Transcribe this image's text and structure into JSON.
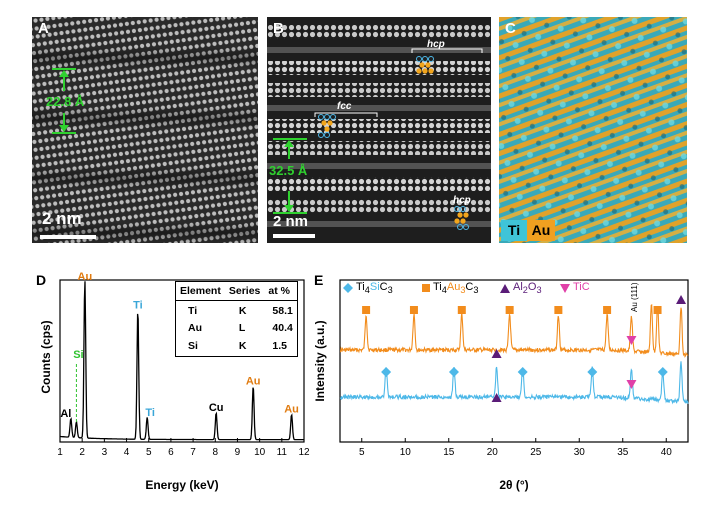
{
  "panel_A": {
    "label": "A",
    "measure": "22.8 Å",
    "scalebar": "2 nm"
  },
  "panel_B": {
    "label": "B",
    "measure": "32.5 Å",
    "scalebar": "2 nm",
    "stacking": [
      "hcp",
      "fcc",
      "hcp"
    ]
  },
  "panel_C": {
    "label": "C",
    "map_legend": [
      {
        "element": "Ti",
        "color": "#3fc4d8"
      },
      {
        "element": "Au",
        "color": "#f0a020"
      }
    ]
  },
  "panel_D": {
    "label": "D",
    "table": {
      "headers": [
        "Element",
        "Series",
        "at %"
      ],
      "rows": [
        [
          "Ti",
          "K",
          "58.1"
        ],
        [
          "Au",
          "L",
          "40.4"
        ],
        [
          "Si",
          "K",
          "1.5"
        ]
      ]
    },
    "peak_labels": [
      "Au",
      "Ti",
      "Ti",
      "Si",
      "Al",
      "Cu",
      "Au",
      "Au"
    ]
  },
  "panel_E": {
    "label": "E",
    "legend": [
      {
        "name": "Ti4SiC3",
        "marker": "diamond",
        "color": "#4db8e8"
      },
      {
        "name": "Ti4Au3C3",
        "marker": "square",
        "color": "#f28c1c"
      },
      {
        "name": "Al2O3",
        "marker": "triangle-up",
        "color": "#5a1c78"
      },
      {
        "name": "TiC",
        "marker": "triangle-down",
        "color": "#e040a8"
      }
    ],
    "annotation": "Au (111)"
  },
  "chart_data": [
    {
      "type": "line",
      "panel": "D",
      "xlabel": "Energy (keV)",
      "ylabel": "Counts (cps)",
      "xlim": [
        1,
        12
      ],
      "xticks": [
        1,
        2,
        3,
        4,
        5,
        6,
        7,
        8,
        9,
        10,
        11,
        12
      ],
      "peaks": [
        {
          "label": "Al",
          "x": 1.49,
          "y": 0.12,
          "color": "#000000"
        },
        {
          "label": "Si",
          "x": 1.74,
          "y": 0.1,
          "color": "#2fc22f"
        },
        {
          "label": "Au",
          "x": 2.12,
          "y": 1.0,
          "color": "#e07b10"
        },
        {
          "label": "Ti",
          "x": 4.51,
          "y": 0.82,
          "color": "#3aa6d8"
        },
        {
          "label": "Ti",
          "x": 4.93,
          "y": 0.14,
          "color": "#3aa6d8"
        },
        {
          "label": "Cu",
          "x": 8.04,
          "y": 0.17,
          "color": "#000000"
        },
        {
          "label": "Au",
          "x": 9.71,
          "y": 0.34,
          "color": "#e07b10"
        },
        {
          "label": "Au",
          "x": 11.44,
          "y": 0.16,
          "color": "#e07b10"
        }
      ]
    },
    {
      "type": "line",
      "panel": "E",
      "xlabel": "2θ (°)",
      "ylabel": "Intensity (a.u.)",
      "xlim": [
        2.5,
        42.5
      ],
      "xticks": [
        5,
        10,
        15,
        20,
        25,
        30,
        35,
        40
      ],
      "series": [
        {
          "name": "Ti4Au3C3",
          "color": "#f28c1c",
          "peaks": [
            5.5,
            11.0,
            16.5,
            22.0,
            27.6,
            33.2,
            36.0,
            38.3,
            39.0,
            41.7
          ]
        },
        {
          "name": "Ti4SiC3",
          "color": "#4db8e8",
          "peaks": [
            7.8,
            15.6,
            20.5,
            23.5,
            31.5,
            36.0,
            39.6,
            41.7
          ]
        }
      ],
      "markers": [
        {
          "phase": "Ti4Au3C3",
          "x": [
            5.5,
            11.0,
            16.5,
            22.0,
            27.6,
            33.2,
            39.0
          ]
        },
        {
          "phase": "Ti4SiC3",
          "x": [
            7.8,
            15.6,
            23.5,
            31.5,
            39.6
          ]
        },
        {
          "phase": "Al2O3",
          "x": [
            20.5,
            41.7
          ]
        },
        {
          "phase": "TiC",
          "x": [
            36.0
          ]
        }
      ]
    }
  ]
}
